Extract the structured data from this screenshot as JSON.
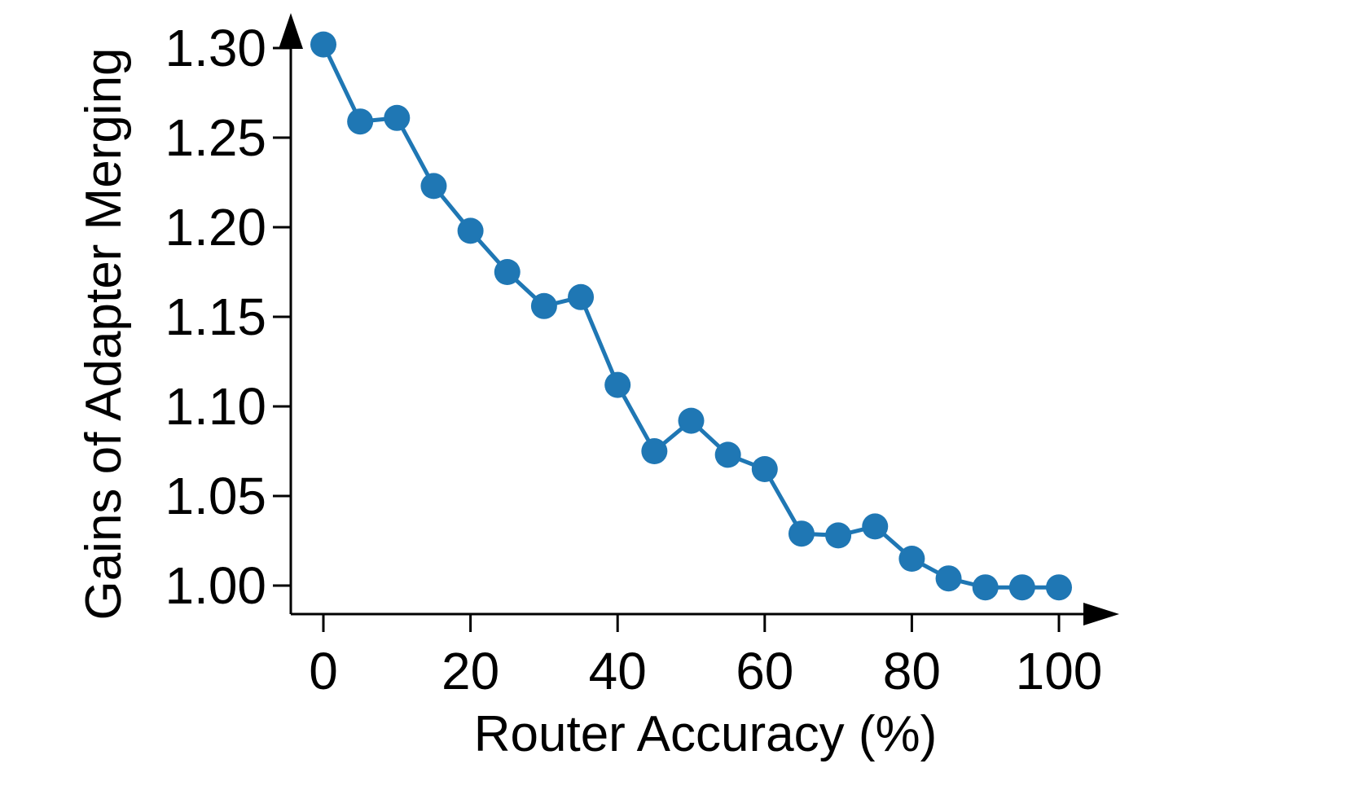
{
  "chart_data": {
    "type": "line",
    "title": "",
    "xlabel": "Router Accuracy (%)",
    "ylabel": "Gains of Adapter Merging",
    "xlim": [
      -2,
      105
    ],
    "ylim": [
      0.985,
      1.305
    ],
    "x_ticks": [
      0,
      20,
      40,
      60,
      80,
      100
    ],
    "x_tick_labels": [
      "0",
      "20",
      "40",
      "60",
      "80",
      "100"
    ],
    "y_ticks": [
      1.0,
      1.05,
      1.1,
      1.15,
      1.2,
      1.25,
      1.3
    ],
    "y_tick_labels": [
      "1.00",
      "1.05",
      "1.10",
      "1.15",
      "1.20",
      "1.25",
      "1.30"
    ],
    "grid": false,
    "legend": "none",
    "series": [
      {
        "color": "#1f77b4",
        "x": [
          0,
          5,
          10,
          15,
          20,
          25,
          30,
          35,
          40,
          45,
          50,
          55,
          60,
          65,
          70,
          75,
          80,
          85,
          90,
          95,
          100
        ],
        "y": [
          1.302,
          1.259,
          1.261,
          1.223,
          1.198,
          1.175,
          1.156,
          1.161,
          1.112,
          1.075,
          1.092,
          1.073,
          1.065,
          1.029,
          1.028,
          1.033,
          1.015,
          1.004,
          0.999,
          0.999,
          0.999
        ]
      }
    ]
  }
}
